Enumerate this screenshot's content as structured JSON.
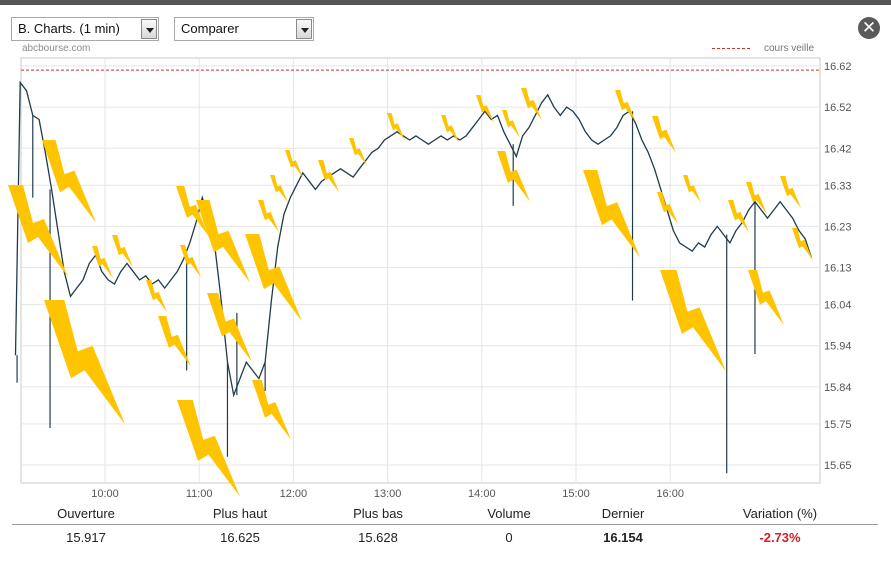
{
  "toolbar": {
    "period_label": "B. Charts. (1 min)",
    "compare_label": "Comparer"
  },
  "chart_header": {
    "site": "abcbourse.com",
    "legend_label": "cours veille"
  },
  "colors": {
    "price_line": "#1f3b4d",
    "prev_close_line": "#c0392b",
    "grid": "#e6e6e6",
    "lightning": "#ffc400",
    "negative": "#d01f1f"
  },
  "chart_data": {
    "type": "line",
    "title": "",
    "xlabel": "",
    "ylabel": "",
    "x_ticks": [
      "10:00",
      "11:00",
      "12:00",
      "13:00",
      "14:00",
      "15:00",
      "16:00"
    ],
    "y_ticks": [
      "16.62",
      "16.52",
      "16.42",
      "16.33",
      "16.23",
      "16.13",
      "16.04",
      "15.94",
      "15.84",
      "15.75",
      "15.65"
    ],
    "x_range": [
      "09:02",
      "17:35"
    ],
    "ylim": [
      15.63,
      16.64
    ],
    "previous_close": 16.61,
    "legend": "top-right",
    "grid": true,
    "series": [
      {
        "values": [
          [
            "09:03",
            15.917
          ],
          [
            "09:06",
            16.58
          ],
          [
            "09:10",
            16.56
          ],
          [
            "09:14",
            16.5
          ],
          [
            "09:18",
            16.49
          ],
          [
            "09:22",
            16.41
          ],
          [
            "09:26",
            16.32
          ],
          [
            "09:30",
            16.22
          ],
          [
            "09:34",
            16.12
          ],
          [
            "09:38",
            16.06
          ],
          [
            "09:42",
            16.08
          ],
          [
            "09:46",
            16.1
          ],
          [
            "09:50",
            16.14
          ],
          [
            "09:54",
            16.16
          ],
          [
            "09:58",
            16.12
          ],
          [
            "10:02",
            16.1
          ],
          [
            "10:06",
            16.09
          ],
          [
            "10:10",
            16.12
          ],
          [
            "10:14",
            16.14
          ],
          [
            "10:18",
            16.12
          ],
          [
            "10:22",
            16.1
          ],
          [
            "10:26",
            16.11
          ],
          [
            "10:30",
            16.09
          ],
          [
            "10:34",
            16.1
          ],
          [
            "10:38",
            16.08
          ],
          [
            "10:42",
            16.1
          ],
          [
            "10:46",
            16.12
          ],
          [
            "10:50",
            16.15
          ],
          [
            "10:54",
            16.19
          ],
          [
            "10:58",
            16.24
          ],
          [
            "11:02",
            16.3
          ],
          [
            "11:06",
            16.25
          ],
          [
            "11:10",
            16.18
          ],
          [
            "11:14",
            16.05
          ],
          [
            "11:18",
            15.9
          ],
          [
            "11:22",
            15.82
          ],
          [
            "11:26",
            15.86
          ],
          [
            "11:30",
            15.9
          ],
          [
            "11:34",
            15.88
          ],
          [
            "11:38",
            15.86
          ],
          [
            "11:42",
            15.9
          ],
          [
            "11:46",
            16.05
          ],
          [
            "11:50",
            16.18
          ],
          [
            "11:54",
            16.26
          ],
          [
            "11:58",
            16.3
          ],
          [
            "12:02",
            16.33
          ],
          [
            "12:06",
            16.36
          ],
          [
            "12:10",
            16.34
          ],
          [
            "12:14",
            16.32
          ],
          [
            "12:18",
            16.34
          ],
          [
            "12:22",
            16.35
          ],
          [
            "12:26",
            16.36
          ],
          [
            "12:30",
            16.37
          ],
          [
            "12:34",
            16.36
          ],
          [
            "12:38",
            16.35
          ],
          [
            "12:42",
            16.37
          ],
          [
            "12:46",
            16.39
          ],
          [
            "12:50",
            16.41
          ],
          [
            "12:54",
            16.42
          ],
          [
            "12:58",
            16.44
          ],
          [
            "13:02",
            16.45
          ],
          [
            "13:06",
            16.46
          ],
          [
            "13:10",
            16.45
          ],
          [
            "13:14",
            16.44
          ],
          [
            "13:18",
            16.45
          ],
          [
            "13:22",
            16.44
          ],
          [
            "13:26",
            16.43
          ],
          [
            "13:30",
            16.44
          ],
          [
            "13:34",
            16.45
          ],
          [
            "13:38",
            16.44
          ],
          [
            "13:42",
            16.45
          ],
          [
            "13:46",
            16.44
          ],
          [
            "13:50",
            16.45
          ],
          [
            "13:54",
            16.47
          ],
          [
            "13:58",
            16.49
          ],
          [
            "14:02",
            16.51
          ],
          [
            "14:06",
            16.49
          ],
          [
            "14:10",
            16.5
          ],
          [
            "14:14",
            16.46
          ],
          [
            "14:18",
            16.43
          ],
          [
            "14:22",
            16.4
          ],
          [
            "14:26",
            16.45
          ],
          [
            "14:30",
            16.47
          ],
          [
            "14:34",
            16.5
          ],
          [
            "14:38",
            16.53
          ],
          [
            "14:42",
            16.55
          ],
          [
            "14:46",
            16.52
          ],
          [
            "14:50",
            16.5
          ],
          [
            "14:54",
            16.52
          ],
          [
            "14:58",
            16.51
          ],
          [
            "15:02",
            16.49
          ],
          [
            "15:06",
            16.46
          ],
          [
            "15:10",
            16.44
          ],
          [
            "15:14",
            16.43
          ],
          [
            "15:18",
            16.44
          ],
          [
            "15:22",
            16.45
          ],
          [
            "15:26",
            16.47
          ],
          [
            "15:30",
            16.5
          ],
          [
            "15:34",
            16.51
          ],
          [
            "15:38",
            16.48
          ],
          [
            "15:42",
            16.44
          ],
          [
            "15:46",
            16.41
          ],
          [
            "15:50",
            16.37
          ],
          [
            "15:54",
            16.32
          ],
          [
            "15:58",
            16.27
          ],
          [
            "16:02",
            16.22
          ],
          [
            "16:06",
            16.19
          ],
          [
            "16:10",
            16.18
          ],
          [
            "16:14",
            16.17
          ],
          [
            "16:18",
            16.19
          ],
          [
            "16:22",
            16.18
          ],
          [
            "16:26",
            16.21
          ],
          [
            "16:30",
            16.23
          ],
          [
            "16:34",
            16.21
          ],
          [
            "16:38",
            16.19
          ],
          [
            "16:42",
            16.22
          ],
          [
            "16:46",
            16.24
          ],
          [
            "16:50",
            16.27
          ],
          [
            "16:54",
            16.29
          ],
          [
            "16:58",
            16.27
          ],
          [
            "17:02",
            16.25
          ],
          [
            "17:06",
            16.27
          ],
          [
            "17:10",
            16.29
          ],
          [
            "17:14",
            16.27
          ],
          [
            "17:18",
            16.25
          ],
          [
            "17:22",
            16.22
          ],
          [
            "17:26",
            16.2
          ],
          [
            "17:30",
            16.154
          ]
        ]
      }
    ],
    "spikes": [
      [
        "09:04",
        15.85
      ],
      [
        "09:14",
        16.3
      ],
      [
        "09:25",
        15.74
      ],
      [
        "10:52",
        15.88
      ],
      [
        "11:18",
        15.67
      ],
      [
        "11:24",
        16.02
      ],
      [
        "11:42",
        15.83
      ],
      [
        "14:20",
        16.28
      ],
      [
        "15:36",
        16.05
      ],
      [
        "16:36",
        15.63
      ],
      [
        "16:54",
        15.92
      ]
    ]
  },
  "stats": {
    "labels": {
      "open": "Ouverture",
      "high": "Plus haut",
      "low": "Plus bas",
      "volume": "Volume",
      "last": "Dernier",
      "change": "Variation (%)"
    },
    "values": {
      "open": "15.917",
      "high": "16.625",
      "low": "15.628",
      "volume": "0",
      "last": "16.154",
      "change": "-2.73%"
    }
  }
}
